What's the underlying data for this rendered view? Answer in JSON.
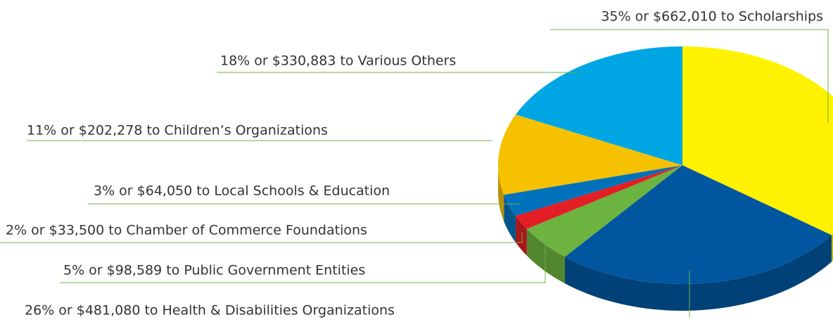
{
  "chart_data": {
    "type": "pie3d",
    "values": [
      35,
      26,
      5,
      2,
      3,
      11,
      18
    ],
    "value_labels": [
      "35% or $662,010 to Scholarships",
      "26% or $481,080 to Health & Disabilities Organizations",
      "5% or $98,589 to Public Government Entities",
      "2% or $33,500 to Chamber of Commerce Foundations",
      "3% or $64,050 to Local Schools & Education",
      "11% or $202,278 to Children’s Organizations",
      "18% or $330,883 to Various Others"
    ],
    "colors": [
      "#fff200",
      "#0057a0",
      "#6db33f",
      "#e31e24",
      "#0072bc",
      "#f5c100",
      "#00a6e4"
    ]
  }
}
